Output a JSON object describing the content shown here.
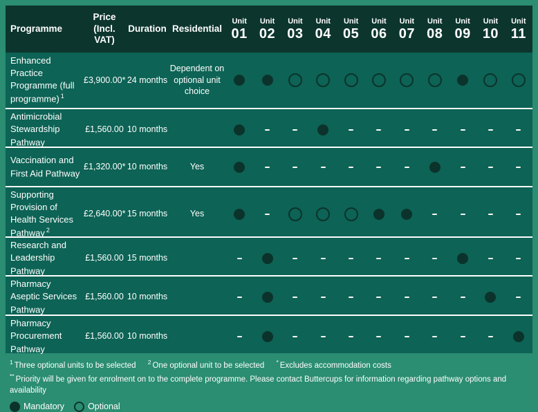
{
  "colors": {
    "background_green": "#2b8d71",
    "header_bg": "#0c352d",
    "row_bg": "#0d6355",
    "indicator_dark": "#0b332b",
    "text": "#ffffff"
  },
  "header": {
    "programme": "Programme",
    "price": "Price (Incl. VAT)",
    "duration": "Duration",
    "residential": "Residential",
    "units": [
      {
        "label": "Unit",
        "number": "01"
      },
      {
        "label": "Unit",
        "number": "02"
      },
      {
        "label": "Unit",
        "number": "03"
      },
      {
        "label": "Unit",
        "number": "04"
      },
      {
        "label": "Unit",
        "number": "05"
      },
      {
        "label": "Unit",
        "number": "06"
      },
      {
        "label": "Unit",
        "number": "07"
      },
      {
        "label": "Unit",
        "number": "08"
      },
      {
        "label": "Unit",
        "number": "09"
      },
      {
        "label": "Unit",
        "number": "10"
      },
      {
        "label": "Unit",
        "number": "11"
      }
    ]
  },
  "rows": [
    {
      "programme": "Enhanced Practice Programme (full programme)",
      "sup": "1",
      "price": "£3,900.00*",
      "duration": "24 months",
      "residential": "Dependent on optional unit choice",
      "units": [
        "mandatory",
        "mandatory",
        "optional",
        "optional",
        "optional",
        "optional",
        "optional",
        "optional",
        "mandatory",
        "optional",
        "optional"
      ]
    },
    {
      "programme": "Antimicrobial Stewardship Pathway",
      "sup": "",
      "price": "£1,560.00",
      "duration": "10 months",
      "residential": "",
      "units": [
        "mandatory",
        "none",
        "none",
        "mandatory",
        "none",
        "none",
        "none",
        "none",
        "none",
        "none",
        "none"
      ]
    },
    {
      "programme": "Vaccination and First Aid Pathway",
      "sup": "",
      "price": "£1,320.00*",
      "duration": "10 months",
      "residential": "Yes",
      "units": [
        "mandatory",
        "none",
        "none",
        "none",
        "none",
        "none",
        "none",
        "mandatory",
        "none",
        "none",
        "none"
      ]
    },
    {
      "programme": "Supporting Provision of Health Services Pathway",
      "sup": "2",
      "price": "£2,640.00*",
      "duration": "15 months",
      "residential": "Yes",
      "units": [
        "mandatory",
        "none",
        "optional",
        "optional",
        "optional",
        "mandatory",
        "mandatory",
        "none",
        "none",
        "none",
        "none"
      ]
    },
    {
      "programme": "Research and Leadership Pathway",
      "sup": "",
      "price": "£1,560.00",
      "duration": "15 months",
      "residential": "",
      "units": [
        "none",
        "mandatory",
        "none",
        "none",
        "none",
        "none",
        "none",
        "none",
        "mandatory",
        "none",
        "none"
      ]
    },
    {
      "programme": "Pharmacy Aseptic Services Pathway",
      "sup": "",
      "price": "£1,560.00",
      "duration": "10 months",
      "residential": "",
      "units": [
        "none",
        "mandatory",
        "none",
        "none",
        "none",
        "none",
        "none",
        "none",
        "none",
        "mandatory",
        "none"
      ]
    },
    {
      "programme": "Pharmacy Procurement Pathway",
      "sup": "",
      "price": "£1,560.00",
      "duration": "10 months",
      "residential": "",
      "units": [
        "none",
        "mandatory",
        "none",
        "none",
        "none",
        "none",
        "none",
        "none",
        "none",
        "none",
        "mandatory"
      ]
    }
  ],
  "footnotes": {
    "line1": [
      {
        "marker": "1",
        "text": "Three optional units to be selected"
      },
      {
        "marker": "2",
        "text": "One optional unit to be selected"
      },
      {
        "marker": "*",
        "text": "Excludes accommodation costs"
      }
    ],
    "line2_marker": "**",
    "line2_text": "Priority will be given for enrolment on to the complete programme.  Please contact Buttercups for information regarding pathway options and availability"
  },
  "legend": {
    "mandatory": "Mandatory",
    "optional": "Optional"
  }
}
